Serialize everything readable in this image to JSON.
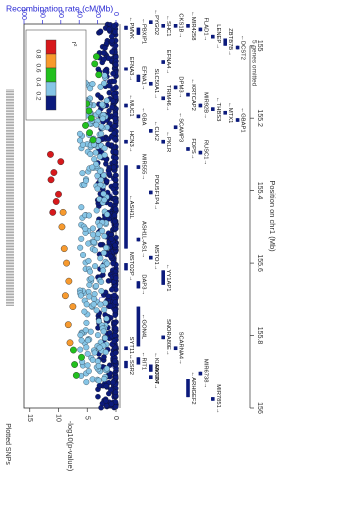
{
  "chart_data": {
    "type": "scatter",
    "title": "",
    "xlabel": "Position on chr1 (Mb)",
    "ylabel": "-log10(p-value)",
    "y2label": "Recombination rate (cM/Mb)",
    "side_label": "Plotted SNPs",
    "note": "5 genes omitted",
    "x_ticks": [
      "155",
      "155.2",
      "155.4",
      "155.6",
      "155.8",
      "156"
    ],
    "x_tick_values": [
      155.0,
      155.2,
      155.4,
      155.6,
      155.8,
      156.0
    ],
    "y_ticks": [
      "0",
      "5",
      "10",
      "15"
    ],
    "y_tick_values": [
      0,
      5,
      10,
      15
    ],
    "y2_ticks": [
      "0",
      "20",
      "40",
      "60",
      "80",
      "100"
    ],
    "y2_tick_values": [
      0,
      20,
      40,
      60,
      80,
      100
    ],
    "xlim": [
      154.94,
      156.0
    ],
    "ylim": [
      0,
      16
    ],
    "y2lim": [
      0,
      100
    ],
    "legend": {
      "title": "r²",
      "position": "upper-left",
      "labels": [
        "0.8",
        "0.6",
        "0.4",
        "0.2"
      ],
      "colors": [
        "#d7191c",
        "#f79a2e",
        "#22c01e",
        "#86c5e6",
        "#0b1a7c"
      ]
    },
    "colors": {
      "lead": "#7b3fa0",
      "r2_08": "#d7191c",
      "r2_06": "#f79a2e",
      "r2_04": "#22c01e",
      "r2_02": "#86c5e6",
      "r2_00": "#0b1a7c",
      "recomb": "#2a2ad4",
      "gene": "#0b1a7c"
    },
    "series": [
      {
        "name": "lead",
        "points": [
          [
            155.15,
            13.0
          ]
        ]
      },
      {
        "name": "r2_08",
        "points": [
          [
            155.14,
            11.9
          ],
          [
            155.3,
            11.4
          ],
          [
            155.37,
            11.3
          ],
          [
            155.41,
            10.0
          ],
          [
            155.43,
            10.4
          ],
          [
            155.46,
            11.0
          ],
          [
            155.35,
            10.8
          ],
          [
            155.32,
            9.6
          ]
        ]
      },
      {
        "name": "r2_06",
        "points": [
          [
            155.46,
            9.2
          ],
          [
            155.5,
            9.4
          ],
          [
            155.56,
            9.0
          ],
          [
            155.6,
            8.6
          ],
          [
            155.65,
            8.2
          ],
          [
            155.69,
            8.8
          ],
          [
            155.72,
            7.5
          ],
          [
            155.77,
            8.3
          ],
          [
            155.82,
            8.0
          ]
        ]
      },
      {
        "name": "r2_04",
        "points": [
          [
            155.03,
            3.4
          ],
          [
            155.05,
            3.7
          ],
          [
            155.08,
            3.0
          ],
          [
            155.16,
            5.1
          ],
          [
            155.18,
            4.7
          ],
          [
            155.2,
            4.3
          ],
          [
            155.22,
            5.3
          ],
          [
            155.24,
            4.6
          ],
          [
            155.26,
            4.0
          ],
          [
            155.84,
            7.4
          ],
          [
            155.88,
            7.2
          ],
          [
            155.91,
            6.9
          ],
          [
            155.86,
            6.0
          ]
        ]
      }
    ],
    "genes": [
      {
        "name": "PMVK",
        "start": 154.945,
        "end": 154.956,
        "strand": "-",
        "lane": 0
      },
      {
        "name": "EFNA3",
        "start": 155.06,
        "end": 155.062,
        "strand": "+",
        "lane": 0
      },
      {
        "name": "MUC1",
        "start": 155.16,
        "end": 155.17,
        "strand": "-",
        "lane": 0
      },
      {
        "name": "HCN3",
        "start": 155.26,
        "end": 155.27,
        "strand": "+",
        "lane": 0
      },
      {
        "name": "ASH1L",
        "start": 155.33,
        "end": 155.56,
        "strand": "-",
        "lane": 0
      },
      {
        "name": "MSTO2P",
        "start": 155.6,
        "end": 155.62,
        "strand": "+",
        "lane": 0
      },
      {
        "name": "SYT11",
        "start": 155.83,
        "end": 155.84,
        "strand": "+",
        "lane": 0
      },
      {
        "name": "SSR2",
        "start": 155.87,
        "end": 155.89,
        "strand": "-",
        "lane": 0
      },
      {
        "name": "PBXIP1",
        "start": 154.95,
        "end": 154.97,
        "strand": "-",
        "lane": 1
      },
      {
        "name": "EFNA1",
        "start": 155.08,
        "end": 155.1,
        "strand": "+",
        "lane": 1
      },
      {
        "name": "GBA",
        "start": 155.19,
        "end": 155.2,
        "strand": "-",
        "lane": 1
      },
      {
        "name": "MIR555",
        "start": 155.33,
        "end": 155.34,
        "strand": "+",
        "lane": 1
      },
      {
        "name": "ASH1L-AS1",
        "start": 155.53,
        "end": 155.54,
        "strand": "+",
        "lane": 1
      },
      {
        "name": "DAP3",
        "start": 155.65,
        "end": 155.67,
        "strand": "+",
        "lane": 1
      },
      {
        "name": "GON4L",
        "start": 155.72,
        "end": 155.83,
        "strand": "-",
        "lane": 1
      },
      {
        "name": "RIT1",
        "start": 155.86,
        "end": 155.88,
        "strand": "-",
        "lane": 1
      },
      {
        "name": "PYGO2",
        "start": 154.93,
        "end": 154.94,
        "strand": "-",
        "lane": 2
      },
      {
        "name": "SLC50A1",
        "start": 155.1,
        "end": 155.11,
        "strand": "+",
        "lane": 2
      },
      {
        "name": "CLK2",
        "start": 155.23,
        "end": 155.24,
        "strand": "-",
        "lane": 2
      },
      {
        "name": "POU5F1P4",
        "start": 155.4,
        "end": 155.41,
        "strand": "+",
        "lane": 2
      },
      {
        "name": "MSTO1",
        "start": 155.58,
        "end": 155.59,
        "strand": "+",
        "lane": 2
      },
      {
        "name": "KIAA0907",
        "start": 155.88,
        "end": 155.9,
        "strand": "-",
        "lane": 2
      },
      {
        "name": "RXFP4",
        "start": 155.91,
        "end": 155.92,
        "strand": "+",
        "lane": 2
      },
      {
        "name": "SHC1",
        "start": 154.94,
        "end": 154.95,
        "strand": "-",
        "lane": 3
      },
      {
        "name": "EFNA4",
        "start": 155.04,
        "end": 155.05,
        "strand": "+",
        "lane": 3
      },
      {
        "name": "TRIM46",
        "start": 155.14,
        "end": 155.15,
        "strand": "+",
        "lane": 3
      },
      {
        "name": "PKLR",
        "start": 155.26,
        "end": 155.27,
        "strand": "-",
        "lane": 3
      },
      {
        "name": "YY1AP1",
        "start": 155.62,
        "end": 155.66,
        "strand": "-",
        "lane": 3
      },
      {
        "name": "SNORA80E",
        "start": 155.8,
        "end": 155.81,
        "strand": "+",
        "lane": 3
      },
      {
        "name": "CKS1B",
        "start": 154.94,
        "end": 154.95,
        "strand": "+",
        "lane": 4
      },
      {
        "name": "DPM3",
        "start": 155.11,
        "end": 155.12,
        "strand": "+",
        "lane": 4
      },
      {
        "name": "SCAMP3",
        "start": 155.22,
        "end": 155.23,
        "strand": "-",
        "lane": 4
      },
      {
        "name": "SCARNA4",
        "start": 155.83,
        "end": 155.84,
        "strand": "+",
        "lane": 4
      },
      {
        "name": "MIR4258",
        "start": 154.94,
        "end": 154.95,
        "strand": "-",
        "lane": 5
      },
      {
        "name": "KRTCAP2",
        "start": 155.13,
        "end": 155.14,
        "strand": "-",
        "lane": 5
      },
      {
        "name": "FDPS",
        "start": 155.28,
        "end": 155.29,
        "strand": "+",
        "lane": 5
      },
      {
        "name": "ARHGEF2",
        "start": 155.92,
        "end": 155.97,
        "strand": "-",
        "lane": 5
      },
      {
        "name": "FLAD1",
        "start": 154.95,
        "end": 154.96,
        "strand": "+",
        "lane": 6
      },
      {
        "name": "MIR92B",
        "start": 155.16,
        "end": 155.17,
        "strand": "+",
        "lane": 6
      },
      {
        "name": "RUSC1",
        "start": 155.29,
        "end": 155.3,
        "strand": "+",
        "lane": 6
      },
      {
        "name": "MIR6738",
        "start": 155.9,
        "end": 155.91,
        "strand": "+",
        "lane": 6
      },
      {
        "name": "LENEP",
        "start": 154.97,
        "end": 154.98,
        "strand": "+",
        "lane": 7
      },
      {
        "name": "THBS3",
        "start": 155.17,
        "end": 155.18,
        "strand": "-",
        "lane": 7
      },
      {
        "name": "MIR7851",
        "start": 155.97,
        "end": 155.98,
        "strand": "+",
        "lane": 7
      },
      {
        "name": "ZBTB7B",
        "start": 154.98,
        "end": 155.0,
        "strand": "+",
        "lane": 8
      },
      {
        "name": "MTX1",
        "start": 155.18,
        "end": 155.19,
        "strand": "-",
        "lane": 8
      },
      {
        "name": "DCST2",
        "start": 155.0,
        "end": 155.01,
        "strand": "-",
        "lane": 9
      },
      {
        "name": "GBAP1",
        "start": 155.2,
        "end": 155.21,
        "strand": "-",
        "lane": 9
      }
    ]
  }
}
